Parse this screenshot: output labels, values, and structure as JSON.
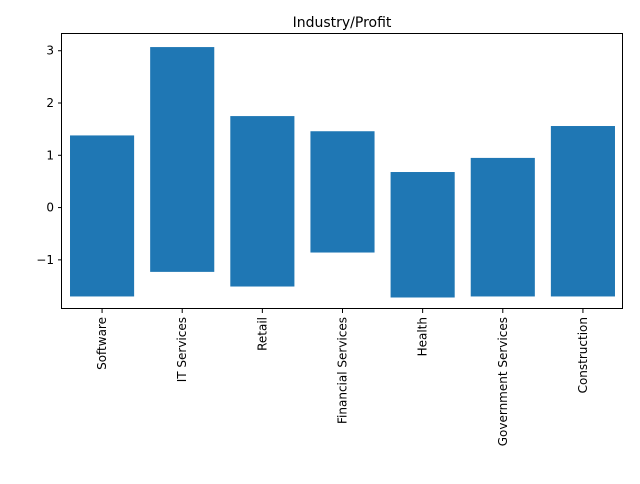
{
  "chart_data": {
    "type": "bar",
    "title": "Industry/Profit",
    "xlabel": "",
    "ylabel": "",
    "categories": [
      "Software",
      "IT Services",
      "Retail",
      "Financial Services",
      "Health",
      "Government Services",
      "Construction"
    ],
    "bars": [
      {
        "bottom": -1.7,
        "top": 1.38
      },
      {
        "bottom": -1.23,
        "top": 3.07
      },
      {
        "bottom": -1.51,
        "top": 1.75
      },
      {
        "bottom": -0.86,
        "top": 1.46
      },
      {
        "bottom": -1.72,
        "top": 0.68
      },
      {
        "bottom": -1.7,
        "top": 0.95
      },
      {
        "bottom": -1.7,
        "top": 1.56
      }
    ],
    "yticks": [
      -1,
      0,
      1,
      2,
      3
    ],
    "ytick_labels": [
      "−1",
      "0",
      "1",
      "2",
      "3"
    ],
    "ylim": [
      -1.94,
      3.32
    ],
    "grid": false,
    "bar_color": "#1f77b4"
  }
}
